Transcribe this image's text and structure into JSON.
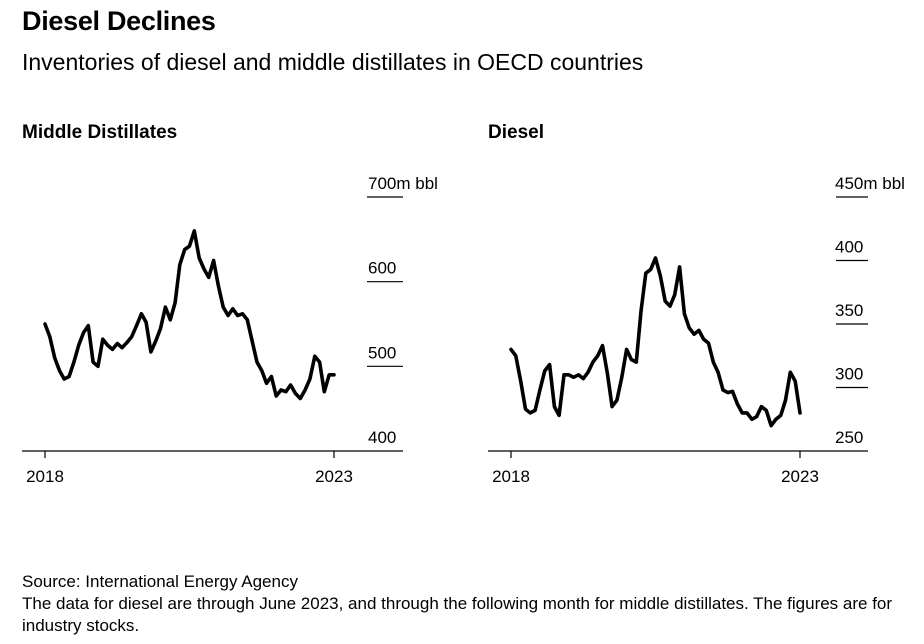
{
  "header": {
    "title": "Diesel Declines",
    "subtitle": "Inventories of diesel and middle distillates in OECD countries"
  },
  "footer": {
    "source": "Source: International Energy Agency",
    "note": "The data for diesel are through June 2023, and through the following month for middle distillates. The figures are for industry stocks."
  },
  "chart_data": [
    {
      "type": "line",
      "title": "Middle Distillates",
      "ylim": [
        400,
        700
      ],
      "y_ticks": [
        "700m bbl",
        "600",
        "500",
        "400"
      ],
      "y_tick_values": [
        700,
        600,
        500,
        400
      ],
      "x_ticks": [
        "2018",
        "2023"
      ],
      "x_range": [
        2018.0,
        2023.0
      ],
      "series": [
        {
          "x": [
            2018.0,
            2018.083,
            2018.167,
            2018.25,
            2018.333,
            2018.417,
            2018.5,
            2018.583,
            2018.667,
            2018.75,
            2018.833,
            2018.917,
            2019.0,
            2019.083,
            2019.167,
            2019.25,
            2019.333,
            2019.417,
            2019.5,
            2019.583,
            2019.667,
            2019.75,
            2019.833,
            2019.917,
            2020.0,
            2020.083,
            2020.167,
            2020.25,
            2020.333,
            2020.417,
            2020.5,
            2020.583,
            2020.667,
            2020.75,
            2020.833,
            2020.917,
            2021.0,
            2021.083,
            2021.167,
            2021.25,
            2021.333,
            2021.417,
            2021.5,
            2021.583,
            2021.667,
            2021.75,
            2021.833,
            2021.917,
            2022.0,
            2022.083,
            2022.167,
            2022.25,
            2022.333,
            2022.417,
            2022.5,
            2022.583,
            2022.667,
            2022.75,
            2022.833,
            2022.917,
            2023.0
          ],
          "values": [
            550,
            535,
            510,
            495,
            485,
            488,
            505,
            525,
            540,
            548,
            505,
            500,
            532,
            525,
            520,
            527,
            522,
            528,
            535,
            548,
            562,
            552,
            517,
            530,
            545,
            570,
            555,
            575,
            620,
            638,
            642,
            660,
            628,
            615,
            605,
            625,
            595,
            570,
            560,
            568,
            560,
            562,
            555,
            530,
            505,
            495,
            480,
            488,
            465,
            472,
            470,
            478,
            468,
            462,
            472,
            485,
            512,
            505,
            470,
            490,
            490
          ]
        }
      ]
    },
    {
      "type": "line",
      "title": "Diesel",
      "ylim": [
        250,
        450
      ],
      "y_ticks": [
        "450m bbl",
        "400",
        "350",
        "300",
        "250"
      ],
      "y_tick_values": [
        450,
        400,
        350,
        300,
        250
      ],
      "x_ticks": [
        "2018",
        "2023"
      ],
      "x_range": [
        2018.0,
        2023.0
      ],
      "series": [
        {
          "x": [
            2018.0,
            2018.083,
            2018.167,
            2018.25,
            2018.333,
            2018.417,
            2018.5,
            2018.583,
            2018.667,
            2018.75,
            2018.833,
            2018.917,
            2019.0,
            2019.083,
            2019.167,
            2019.25,
            2019.333,
            2019.417,
            2019.5,
            2019.583,
            2019.667,
            2019.75,
            2019.833,
            2019.917,
            2020.0,
            2020.083,
            2020.167,
            2020.25,
            2020.333,
            2020.417,
            2020.5,
            2020.583,
            2020.667,
            2020.75,
            2020.833,
            2020.917,
            2021.0,
            2021.083,
            2021.167,
            2021.25,
            2021.333,
            2021.417,
            2021.5,
            2021.583,
            2021.667,
            2021.75,
            2021.833,
            2021.917,
            2022.0,
            2022.083,
            2022.167,
            2022.25,
            2022.333,
            2022.417,
            2022.5,
            2022.583,
            2022.667,
            2022.75,
            2022.833,
            2022.917,
            2023.0
          ],
          "values": [
            330,
            325,
            305,
            283,
            280,
            282,
            298,
            313,
            318,
            285,
            278,
            310,
            310,
            308,
            310,
            307,
            312,
            320,
            325,
            333,
            311,
            285,
            290,
            308,
            330,
            322,
            320,
            360,
            390,
            393,
            402,
            388,
            368,
            364,
            373,
            395,
            358,
            347,
            342,
            345,
            338,
            335,
            320,
            312,
            298,
            296,
            297,
            287,
            280,
            280,
            275,
            277,
            285,
            282,
            270,
            275,
            278,
            290,
            312,
            305,
            280
          ]
        }
      ]
    }
  ]
}
